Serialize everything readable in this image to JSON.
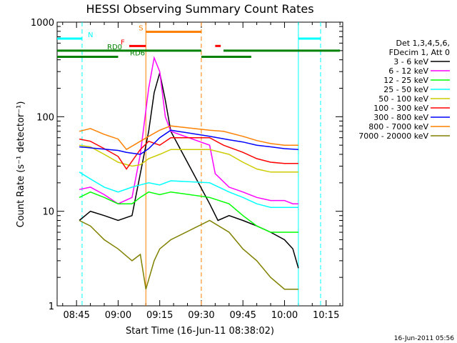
{
  "chart_data": {
    "type": "line",
    "title": "HESSI Observing Summary Count Rates",
    "xlabel": "Start Time (16-Jun-11 08:38:02)",
    "ylabel": "Count Rate (s⁻¹ detector⁻¹)",
    "ylog": true,
    "ylim": [
      1,
      1000
    ],
    "xlim": [
      "08:38",
      "10:21"
    ],
    "x_ticks": [
      "08:45",
      "09:00",
      "09:15",
      "09:30",
      "09:45",
      "10:00",
      "10:15"
    ],
    "y_ticks": [
      "1",
      "10",
      "100",
      "1000"
    ],
    "legend_header": [
      "Det 1,3,4,5,6,",
      "FDecim 1, Att 0"
    ],
    "grid": false,
    "legend_position": "right",
    "series": [
      {
        "name": "3 - 6 keV",
        "color": "#000000",
        "x": [
          "08:46",
          "08:50",
          "08:55",
          "09:00",
          "09:05",
          "09:08",
          "09:11",
          "09:13",
          "09:15",
          "09:17",
          "09:19",
          "09:33",
          "09:36",
          "09:40",
          "09:45",
          "09:50",
          "09:55",
          "10:00",
          "10:03",
          "10:05"
        ],
        "values": [
          8,
          10,
          9,
          8,
          9,
          25,
          70,
          180,
          290,
          150,
          70,
          12,
          8,
          9,
          8,
          7,
          6,
          5,
          4,
          2.5
        ]
      },
      {
        "name": "6 - 12 keV",
        "color": "#ff00ff",
        "x": [
          "08:46",
          "08:50",
          "08:55",
          "09:00",
          "09:05",
          "09:08",
          "09:11",
          "09:13",
          "09:15",
          "09:17",
          "09:19",
          "09:33",
          "09:35",
          "09:40",
          "09:45",
          "09:50",
          "09:55",
          "10:00",
          "10:03",
          "10:05"
        ],
        "values": [
          17,
          18,
          15,
          12,
          14,
          40,
          200,
          420,
          300,
          100,
          70,
          50,
          25,
          18,
          16,
          14,
          13,
          13,
          12,
          12
        ]
      },
      {
        "name": "12 - 25 keV",
        "color": "#00ff00",
        "x": [
          "08:46",
          "08:50",
          "08:55",
          "09:00",
          "09:05",
          "09:08",
          "09:11",
          "09:15",
          "09:19",
          "09:33",
          "09:40",
          "09:45",
          "09:50",
          "09:55",
          "10:00",
          "10:05"
        ],
        "values": [
          14,
          16,
          14,
          12,
          12,
          14,
          16,
          15,
          16,
          14,
          12,
          9,
          7,
          6,
          6,
          6
        ]
      },
      {
        "name": "25 - 50 keV",
        "color": "#00ffff",
        "x": [
          "08:46",
          "08:50",
          "08:55",
          "09:00",
          "09:05",
          "09:08",
          "09:11",
          "09:15",
          "09:19",
          "09:33",
          "09:40",
          "09:45",
          "09:50",
          "09:55",
          "10:00",
          "10:05"
        ],
        "values": [
          26,
          22,
          18,
          16,
          18,
          19,
          20,
          19,
          21,
          20,
          16,
          14,
          12,
          11,
          11,
          11
        ]
      },
      {
        "name": "50 - 100 keV",
        "color": "#cccc00",
        "x": [
          "08:46",
          "08:50",
          "08:55",
          "09:00",
          "09:05",
          "09:08",
          "09:11",
          "09:15",
          "09:19",
          "09:33",
          "09:40",
          "09:45",
          "09:50",
          "09:55",
          "10:00",
          "10:05"
        ],
        "values": [
          50,
          48,
          40,
          33,
          30,
          31,
          36,
          40,
          45,
          45,
          40,
          33,
          28,
          26,
          26,
          26
        ]
      },
      {
        "name": "100 - 300 keV",
        "color": "#ff0000",
        "x": [
          "08:46",
          "08:50",
          "08:55",
          "09:00",
          "09:03",
          "09:08",
          "09:11",
          "09:15",
          "09:19",
          "09:33",
          "09:38",
          "09:45",
          "09:50",
          "09:55",
          "10:00",
          "10:05"
        ],
        "values": [
          58,
          55,
          46,
          38,
          28,
          45,
          55,
          50,
          60,
          60,
          50,
          42,
          36,
          33,
          32,
          32
        ]
      },
      {
        "name": "300 - 800 keV",
        "color": "#0000ff",
        "x": [
          "08:46",
          "09:00",
          "09:03",
          "09:08",
          "09:11",
          "09:15",
          "09:19",
          "09:33",
          "09:40",
          "09:45",
          "09:50",
          "09:55",
          "10:00",
          "10:05"
        ],
        "values": [
          48,
          44,
          42,
          40,
          46,
          60,
          72,
          62,
          57,
          54,
          50,
          48,
          46,
          45
        ]
      },
      {
        "name": "800 - 7000 keV",
        "color": "#ff8000",
        "x": [
          "08:46",
          "08:50",
          "08:55",
          "09:00",
          "09:03",
          "09:08",
          "09:11",
          "09:15",
          "09:19",
          "09:33",
          "09:38",
          "09:45",
          "09:50",
          "09:55",
          "10:00",
          "10:05"
        ],
        "values": [
          70,
          75,
          65,
          58,
          45,
          55,
          62,
          72,
          80,
          72,
          70,
          62,
          56,
          52,
          50,
          50
        ]
      },
      {
        "name": "7000 - 20000 keV",
        "color": "#808000",
        "x": [
          "08:46",
          "08:50",
          "08:55",
          "09:00",
          "09:05",
          "09:08",
          "09:10",
          "09:13",
          "09:15",
          "09:19",
          "09:33",
          "09:40",
          "09:45",
          "09:50",
          "09:55",
          "10:00",
          "10:05"
        ],
        "values": [
          8,
          7,
          5,
          4,
          3,
          3.5,
          1.5,
          3,
          4,
          5,
          8,
          6,
          4,
          3,
          2,
          1.5,
          1.5
        ]
      }
    ],
    "status_bars": [
      {
        "label": "N",
        "color": "#00ffff",
        "segments": [
          [
            "08:38",
            "08:47"
          ],
          [
            "10:05",
            "10:13"
          ]
        ],
        "level": 670
      },
      {
        "label": "S",
        "color": "#ff8000",
        "segments": [
          [
            "09:10",
            "09:30"
          ]
        ],
        "level": 790
      },
      {
        "label": "F",
        "color": "#ff0000",
        "segments": [
          [
            "09:04",
            "09:10"
          ],
          [
            "09:35",
            "09:37"
          ]
        ],
        "level": 560
      },
      {
        "label": "RD0",
        "color": "#008000",
        "segments": [
          [
            "08:38",
            "09:30"
          ],
          [
            "09:38",
            "10:20"
          ]
        ],
        "level": 500
      },
      {
        "label": "RD6",
        "color": "#008000",
        "segments": [
          [
            "08:38",
            "09:00"
          ],
          [
            "09:30",
            "09:48"
          ]
        ],
        "level": 430
      }
    ],
    "vertical_lines": [
      {
        "color": "#00ffff",
        "style": "solid",
        "x": "10:05"
      },
      {
        "color": "#00ffff",
        "style": "dashed",
        "x": "08:47"
      },
      {
        "color": "#00ffff",
        "style": "dashed",
        "x": "10:13"
      },
      {
        "color": "#ff8000",
        "style": "solid",
        "x": "09:10"
      },
      {
        "color": "#ff8000",
        "style": "dashed",
        "x": "09:30"
      }
    ],
    "footer_stamp": "16-Jun-2011 05:56"
  }
}
